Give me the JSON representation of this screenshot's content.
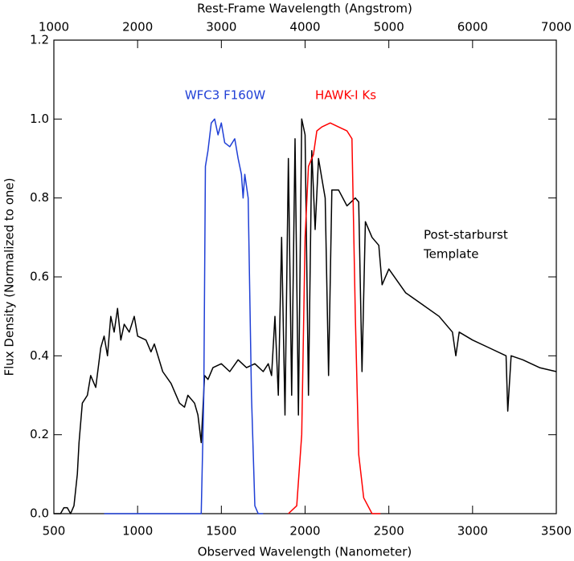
{
  "chart_data": {
    "type": "line",
    "xlabel": "Observed Wavelength (Nanometer)",
    "x2label": "Rest-Frame Wavelength (Angstrom)",
    "ylabel": "Flux Density (Normalized to one)",
    "xlim": [
      500,
      3500
    ],
    "xticks": [
      500,
      1000,
      1500,
      2000,
      2500,
      3000,
      3500
    ],
    "x2lim": [
      1000,
      7000
    ],
    "x2ticks": [
      1000,
      2000,
      3000,
      4000,
      5000,
      6000,
      7000
    ],
    "ylim": [
      0,
      1.2
    ],
    "yticks": [
      {
        "value": 0,
        "label": "0.0"
      },
      0.2,
      0.4,
      0.6,
      0.8,
      {
        "value": 1,
        "label": "1.0"
      },
      1.2
    ],
    "annotations": [
      {
        "lines": [
          "WFC3 F160W"
        ],
        "color": "#1f3fd6"
      },
      {
        "lines": [
          "HAWK-I Ks"
        ],
        "color": "#ff0000"
      },
      {
        "lines": [
          "Post-starburst",
          "Template"
        ],
        "color": "#000000"
      }
    ],
    "series": [
      {
        "color": "#000000",
        "x": [
          500,
          540,
          560,
          580,
          600,
          620,
          640,
          650,
          670,
          700,
          720,
          750,
          780,
          800,
          820,
          840,
          860,
          880,
          900,
          920,
          950,
          980,
          1000,
          1050,
          1080,
          1100,
          1150,
          1200,
          1250,
          1280,
          1300,
          1340,
          1360,
          1380,
          1400,
          1420,
          1450,
          1500,
          1550,
          1600,
          1650,
          1700,
          1750,
          1780,
          1800,
          1820,
          1840,
          1860,
          1880,
          1900,
          1920,
          1940,
          1960,
          1980,
          2000,
          2020,
          2040,
          2060,
          2080,
          2100,
          2120,
          2140,
          2160,
          2200,
          2250,
          2300,
          2320,
          2340,
          2360,
          2400,
          2440,
          2460,
          2500,
          2600,
          2700,
          2800,
          2880,
          2900,
          2920,
          3000,
          3100,
          3200,
          3210,
          3230,
          3300,
          3400,
          3500
        ],
        "values": [
          0,
          0,
          0.015,
          0.015,
          0,
          0.02,
          0.1,
          0.18,
          0.28,
          0.3,
          0.35,
          0.32,
          0.42,
          0.45,
          0.4,
          0.5,
          0.46,
          0.52,
          0.44,
          0.48,
          0.46,
          0.5,
          0.45,
          0.44,
          0.41,
          0.43,
          0.36,
          0.33,
          0.28,
          0.27,
          0.3,
          0.28,
          0.25,
          0.18,
          0.35,
          0.34,
          0.37,
          0.38,
          0.36,
          0.39,
          0.37,
          0.38,
          0.36,
          0.38,
          0.35,
          0.5,
          0.3,
          0.7,
          0.25,
          0.9,
          0.3,
          0.95,
          0.25,
          1.0,
          0.96,
          0.3,
          0.92,
          0.72,
          0.9,
          0.85,
          0.8,
          0.35,
          0.82,
          0.82,
          0.78,
          0.8,
          0.79,
          0.36,
          0.74,
          0.7,
          0.68,
          0.58,
          0.62,
          0.56,
          0.53,
          0.5,
          0.46,
          0.4,
          0.46,
          0.44,
          0.42,
          0.4,
          0.26,
          0.4,
          0.39,
          0.37,
          0.36
        ]
      },
      {
        "color": "#1f3fd6",
        "x": [
          800,
          1380,
          1395,
          1405,
          1420,
          1440,
          1460,
          1480,
          1500,
          1520,
          1550,
          1580,
          1600,
          1620,
          1630,
          1640,
          1660,
          1680,
          1700,
          1720,
          1750
        ],
        "values": [
          0,
          0,
          0.3,
          0.88,
          0.92,
          0.99,
          1.0,
          0.96,
          0.99,
          0.94,
          0.93,
          0.95,
          0.9,
          0.86,
          0.8,
          0.86,
          0.8,
          0.3,
          0.02,
          0,
          0
        ]
      },
      {
        "color": "#ff0000",
        "x": [
          1900,
          1950,
          1980,
          2000,
          2020,
          2050,
          2070,
          2100,
          2150,
          2200,
          2250,
          2280,
          2300,
          2320,
          2350,
          2400,
          2450
        ],
        "values": [
          0,
          0.02,
          0.2,
          0.7,
          0.88,
          0.91,
          0.97,
          0.98,
          0.99,
          0.98,
          0.97,
          0.95,
          0.5,
          0.15,
          0.04,
          0,
          0
        ]
      }
    ]
  }
}
